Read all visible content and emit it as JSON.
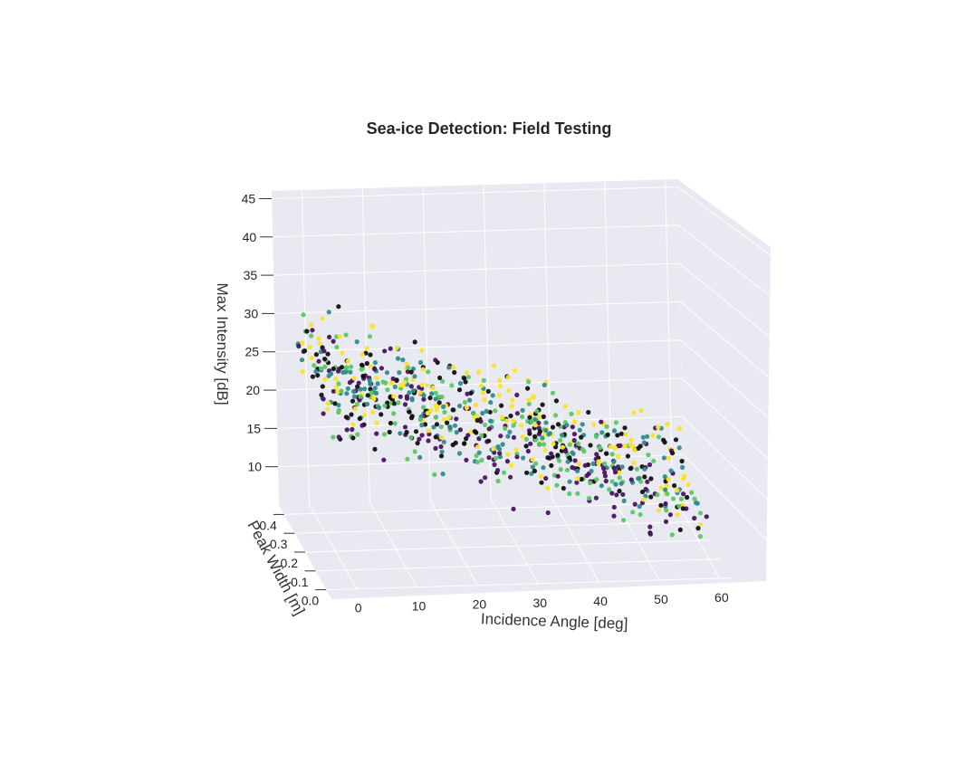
{
  "chart_data": {
    "type": "scatter",
    "projection": "3d",
    "title": "Sea-ice Detection: Field Testing",
    "axes": {
      "x": {
        "label": "Incidence Angle [deg]",
        "range": [
          -5,
          62
        ],
        "ticks": [
          "0",
          "10",
          "20",
          "30",
          "40",
          "50",
          "60"
        ]
      },
      "y": {
        "label": "Peak Width [m]",
        "range": [
          0,
          0.45
        ],
        "ticks": [
          "0.0",
          "0.1",
          "0.2",
          "0.3",
          "0.4"
        ]
      },
      "z": {
        "label": "Max Intensity [dB]",
        "range": [
          5,
          46
        ],
        "ticks": [
          "10",
          "15",
          "20",
          "25",
          "30",
          "35",
          "40",
          "45"
        ]
      }
    },
    "grid": true,
    "legend": "none",
    "background": "#e8e9f1",
    "gridline_color": "#ffffff",
    "point_colors": {
      "group_a": "#111111",
      "group_b": "#4a1460",
      "group_c": "#2e8c8c",
      "group_d": "#5cc864",
      "group_e": "#fce32a"
    },
    "series_trend": [
      {
        "x": 0,
        "z_mean": 27
      },
      {
        "x": 10,
        "z_mean": 25
      },
      {
        "x": 20,
        "z_mean": 22
      },
      {
        "x": 30,
        "z_mean": 20
      },
      {
        "x": 40,
        "z_mean": 17
      },
      {
        "x": 50,
        "z_mean": 14
      },
      {
        "x": 60,
        "z_mean": 12
      }
    ],
    "n_points": 800
  }
}
